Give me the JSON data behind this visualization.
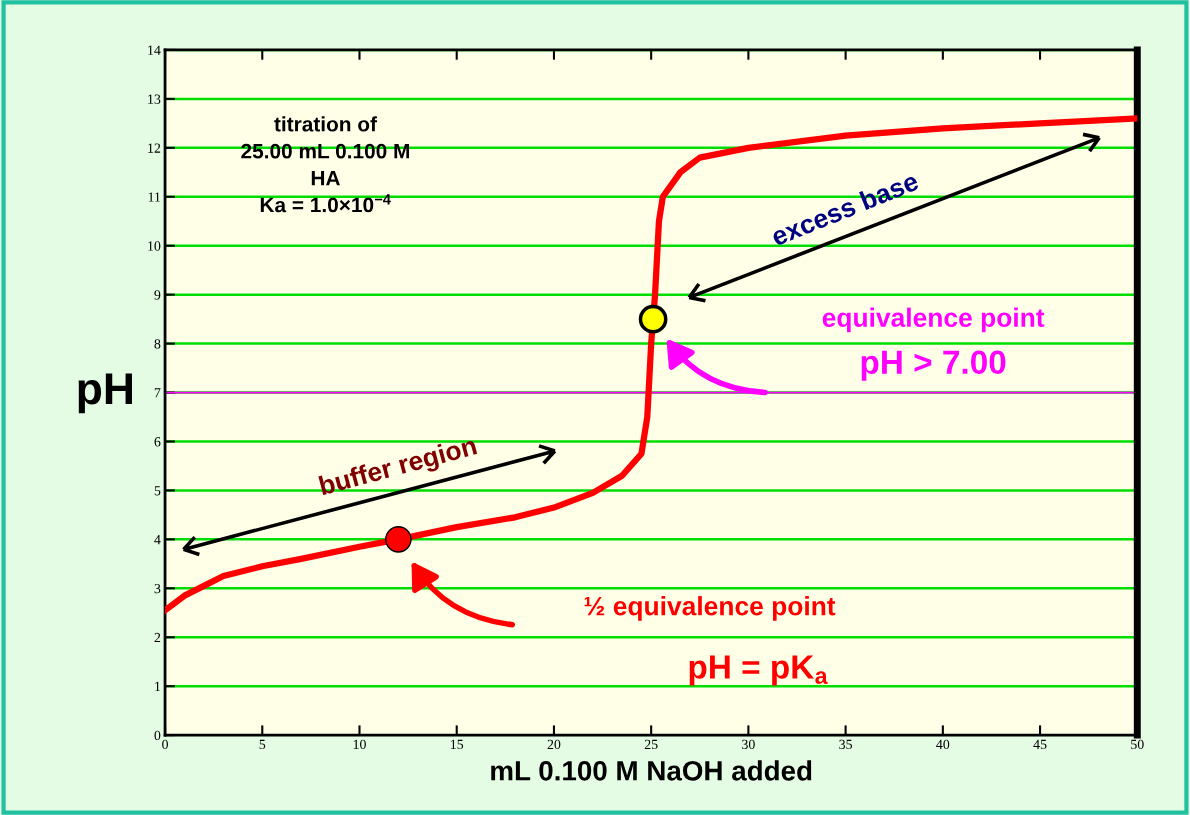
{
  "chart_data": {
    "type": "line",
    "xlabel": "mL 0.100 M NaOH added",
    "ylabel": "pH",
    "xlim": [
      0,
      50
    ],
    "ylim": [
      0,
      14
    ],
    "xticks": [
      0,
      5,
      10,
      15,
      20,
      25,
      30,
      35,
      40,
      45,
      50
    ],
    "yticks": [
      0,
      1,
      2,
      3,
      4,
      5,
      6,
      7,
      8,
      9,
      10,
      11,
      12,
      13,
      14
    ],
    "grid": "y",
    "legend": false,
    "series": [
      {
        "color": "#ff0000",
        "x": [
          0,
          1,
          2,
          3,
          5,
          7,
          10,
          12,
          15,
          18,
          20,
          22,
          23.5,
          24.5,
          24.8,
          25,
          25.2,
          25.4,
          25.6,
          26.5,
          27.5,
          30,
          35,
          40,
          45,
          50
        ],
        "values": [
          2.55,
          2.85,
          3.05,
          3.25,
          3.45,
          3.6,
          3.85,
          4.0,
          4.25,
          4.45,
          4.65,
          4.95,
          5.3,
          5.75,
          6.5,
          8.0,
          9.0,
          10.5,
          11.0,
          11.5,
          11.8,
          12.0,
          12.25,
          12.4,
          12.5,
          12.6
        ]
      },
      {
        "type": "scatter",
        "marker": "circle",
        "color": "#ffff00",
        "x": [
          25.1
        ],
        "values": [
          8.5
        ]
      },
      {
        "type": "scatter",
        "marker": "circle",
        "color": "#ff0000",
        "x": [
          12
        ],
        "values": [
          4.0
        ]
      }
    ],
    "ref_lines": [
      {
        "axis": "y",
        "value": 7,
        "color": "#ff00ff"
      }
    ],
    "annotations": [
      "titration of\n25.00 mL 0.100 M\nHA\nKa = 1.0×10$^{−4}$",
      "buffer region",
      "excess base",
      "equivalence point",
      "pH > 7.00",
      "½ equivalence point",
      "pH = pK$_{a}$"
    ]
  }
}
